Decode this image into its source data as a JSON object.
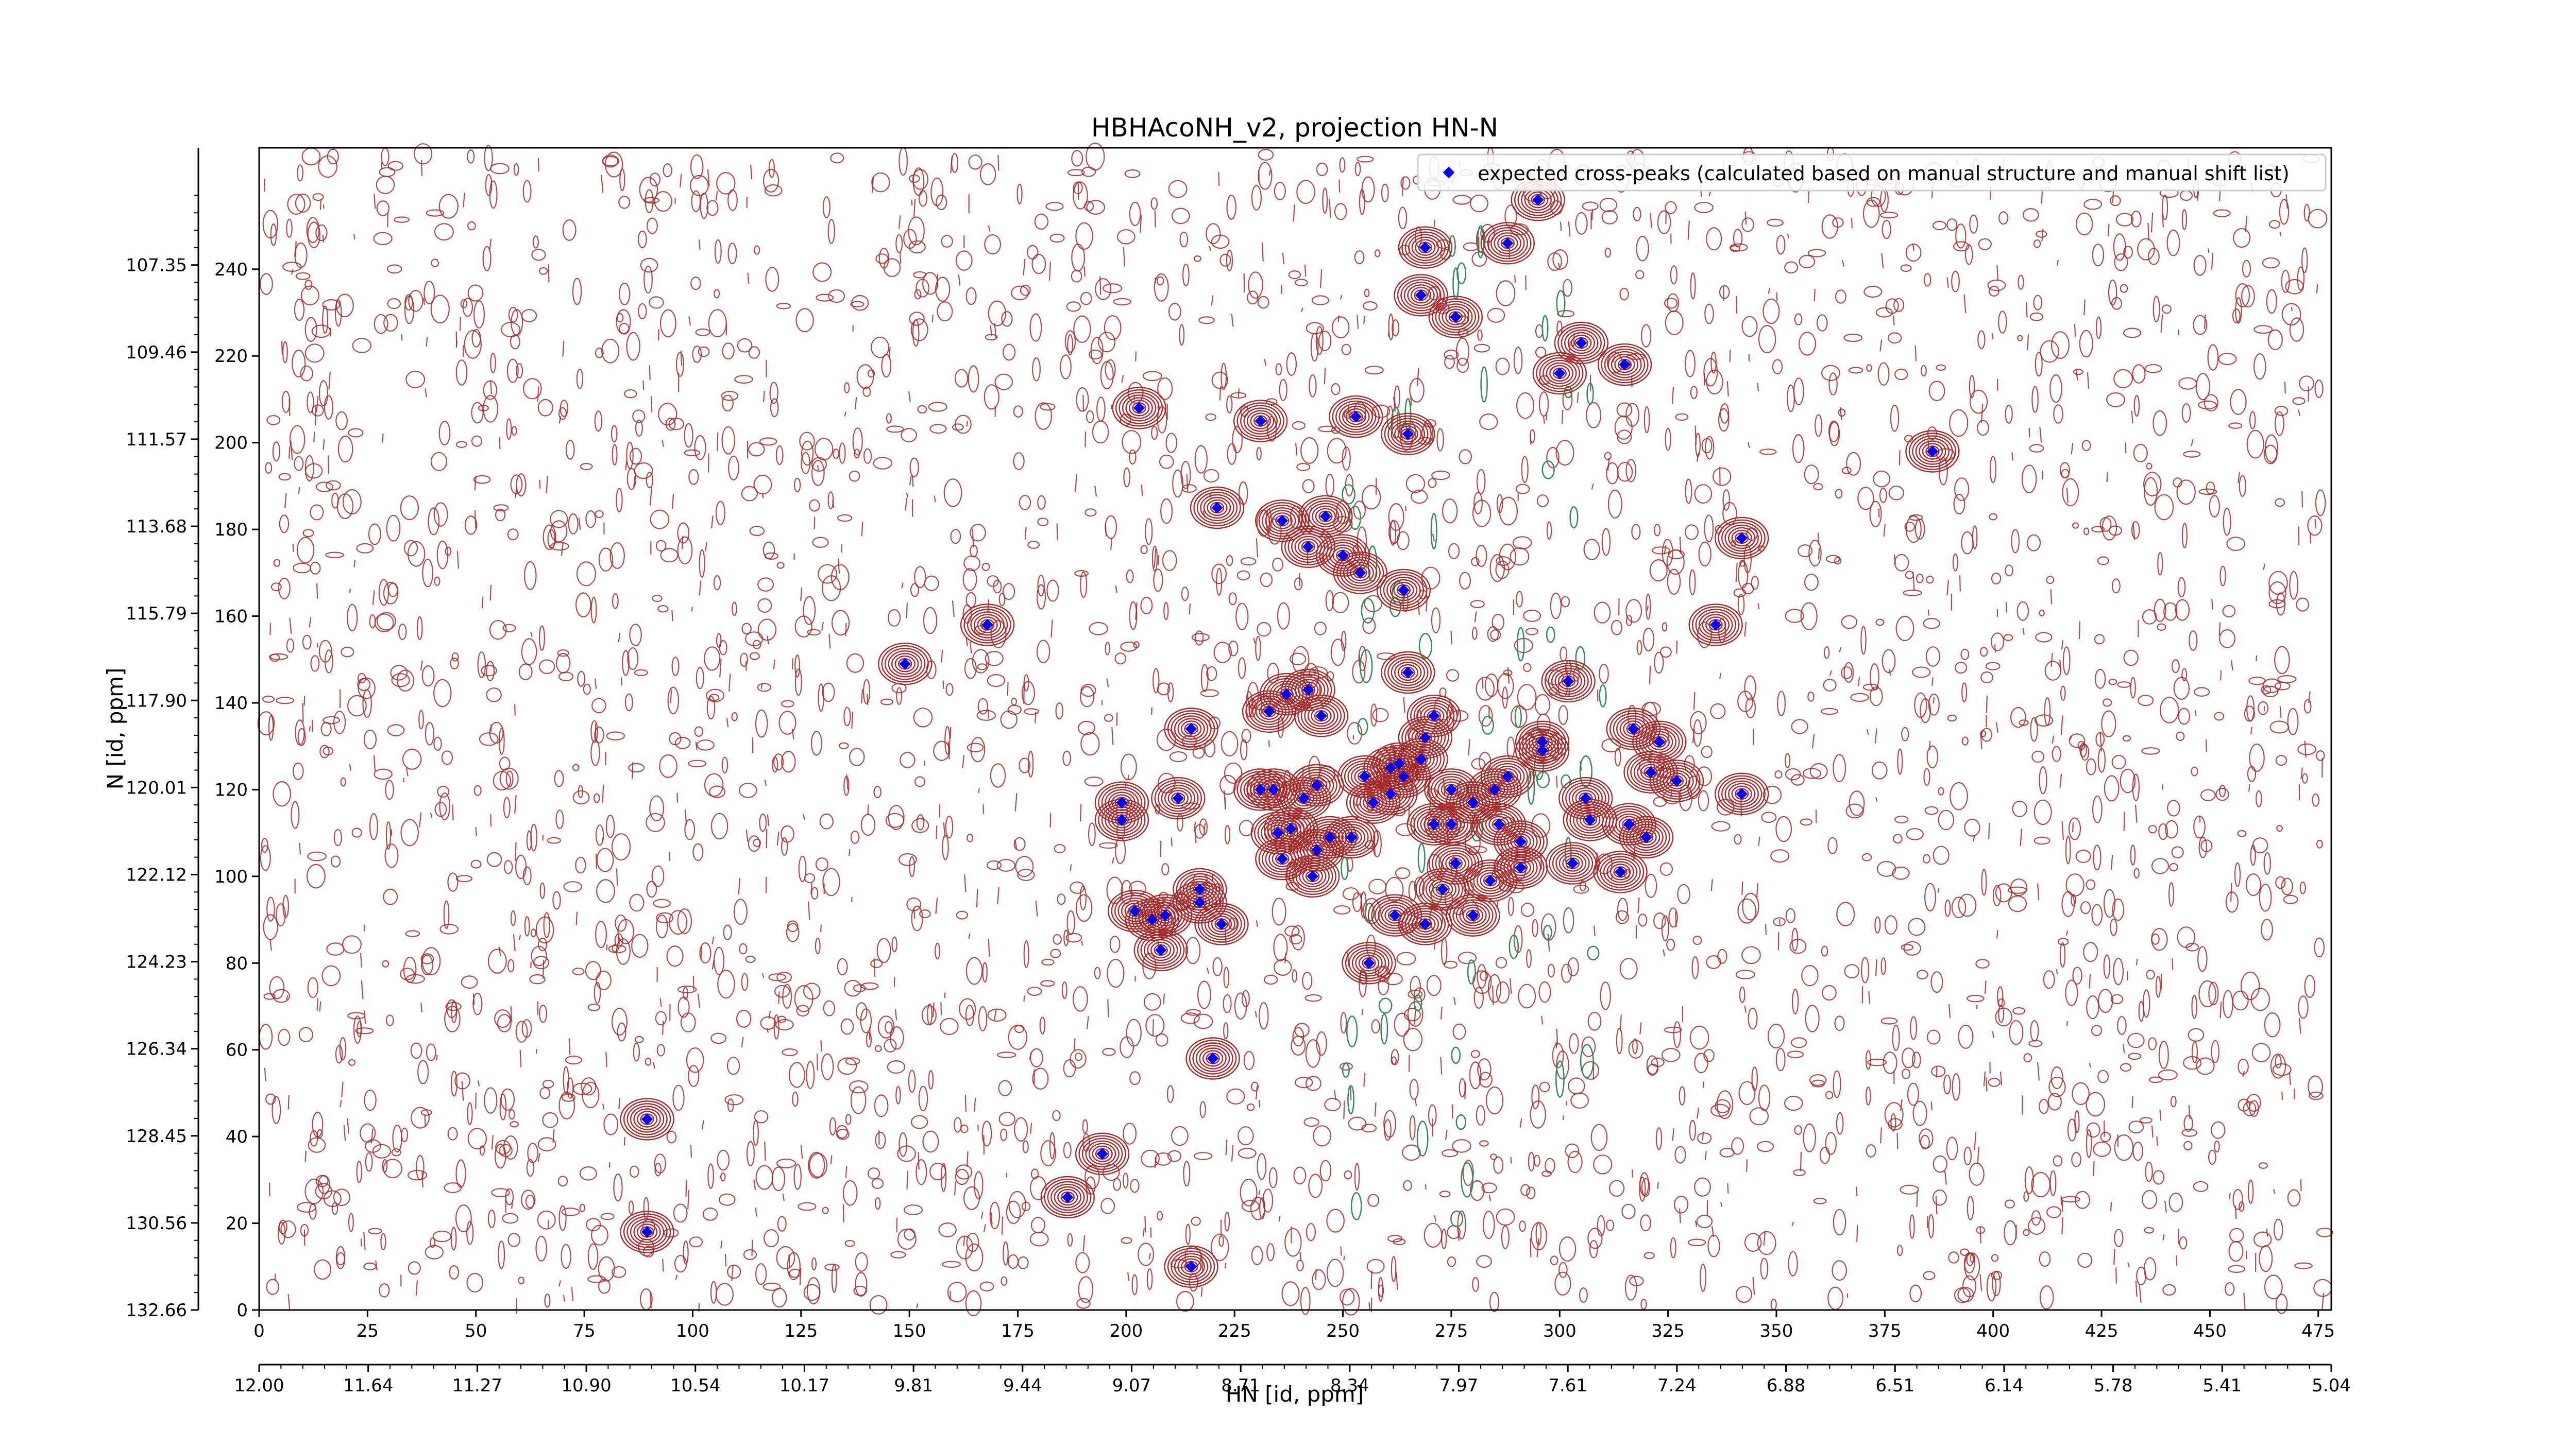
{
  "chart_data": {
    "type": "scatter",
    "title": "HBHAcoNH_v2, projection HN-N",
    "xlabel": "HN [id, ppm]",
    "ylabel": "N [id, ppm]",
    "x_index_range": [
      0,
      478
    ],
    "y_index_range": [
      0,
      268
    ],
    "x_index_ticks": [
      "0",
      "25",
      "50",
      "75",
      "100",
      "125",
      "150",
      "175",
      "200",
      "225",
      "250",
      "275",
      "300",
      "325",
      "350",
      "375",
      "400",
      "425",
      "450",
      "475"
    ],
    "x_ppm_ticks": [
      "12.00",
      "11.64",
      "11.27",
      "10.90",
      "10.54",
      "10.17",
      "9.81",
      "9.44",
      "9.07",
      "8.71",
      "8.34",
      "7.97",
      "7.61",
      "7.24",
      "6.88",
      "6.51",
      "6.14",
      "5.78",
      "5.41",
      "5.04"
    ],
    "y_index_ticks": [
      "0",
      "20",
      "40",
      "60",
      "80",
      "100",
      "120",
      "140",
      "160",
      "180",
      "200",
      "220",
      "240"
    ],
    "y_ppm_ticks": [
      "132.66",
      "130.56",
      "128.45",
      "126.34",
      "124.23",
      "122.12",
      "120.01",
      "117.90",
      "115.79",
      "113.68",
      "111.57",
      "109.46",
      "107.35"
    ],
    "legend": {
      "label": "expected cross-peaks (calculated based on manual structure and manual shift list)",
      "placement": "top-right",
      "marker_color": "#0000ff"
    },
    "colors": {
      "positive_contour": "#a52a2a",
      "negative_contour": "#2e8b57",
      "marker": "#0000ff"
    },
    "series": [
      {
        "name": "expected cross-peaks (calculated based on manual structure and manual shift list)",
        "points": [
          [
            89.5,
            18
          ],
          [
            89.5,
            44
          ],
          [
            186.5,
            26
          ],
          [
            194.5,
            36
          ],
          [
            215,
            10
          ],
          [
            220,
            58
          ],
          [
            208,
            83
          ],
          [
            202,
            92
          ],
          [
            206,
            90
          ],
          [
            209,
            91
          ],
          [
            217,
            94
          ],
          [
            217,
            97
          ],
          [
            222,
            89
          ],
          [
            199,
            113
          ],
          [
            199,
            117
          ],
          [
            212,
            118
          ],
          [
            215,
            134
          ],
          [
            237,
            142
          ],
          [
            233,
            138
          ],
          [
            242,
            143
          ],
          [
            245,
            137
          ],
          [
            231,
            120
          ],
          [
            234,
            120
          ],
          [
            241,
            118
          ],
          [
            244,
            121
          ],
          [
            235,
            110
          ],
          [
            238,
            111
          ],
          [
            236,
            104
          ],
          [
            244,
            106
          ],
          [
            247,
            109
          ],
          [
            252,
            109
          ],
          [
            243,
            100
          ],
          [
            255,
            123
          ],
          [
            257,
            117
          ],
          [
            261,
            125
          ],
          [
            261,
            119
          ],
          [
            263,
            126
          ],
          [
            264,
            123
          ],
          [
            268,
            127
          ],
          [
            269,
            132
          ],
          [
            271,
            137
          ],
          [
            265,
            147
          ],
          [
            275,
            120
          ],
          [
            271,
            112
          ],
          [
            276,
            103
          ],
          [
            280,
            117
          ],
          [
            275,
            112
          ],
          [
            273,
            97
          ],
          [
            269,
            89
          ],
          [
            262,
            91
          ],
          [
            256,
            80
          ],
          [
            280,
            91
          ],
          [
            284,
            99
          ],
          [
            291,
            102
          ],
          [
            291,
            108
          ],
          [
            286,
            112
          ],
          [
            285,
            120
          ],
          [
            288,
            123
          ],
          [
            296,
            129
          ],
          [
            296,
            131
          ],
          [
            302,
            145
          ],
          [
            303,
            103
          ],
          [
            306,
            118
          ],
          [
            307,
            113
          ],
          [
            314,
            101
          ],
          [
            316,
            112
          ],
          [
            317,
            134
          ],
          [
            320,
            109
          ],
          [
            321,
            124
          ],
          [
            327,
            122
          ],
          [
            323,
            131
          ],
          [
            336,
            158
          ],
          [
            342,
            119
          ],
          [
            149,
            149
          ],
          [
            168,
            158
          ],
          [
            203,
            208
          ],
          [
            231,
            205
          ],
          [
            253,
            206
          ],
          [
            221,
            185
          ],
          [
            236,
            182
          ],
          [
            246,
            183
          ],
          [
            242,
            176
          ],
          [
            250,
            174
          ],
          [
            254,
            170
          ],
          [
            264,
            166
          ],
          [
            265,
            202
          ],
          [
            276,
            229
          ],
          [
            269,
            245
          ],
          [
            268,
            234
          ],
          [
            295,
            256
          ],
          [
            288,
            246
          ],
          [
            300,
            216
          ],
          [
            315,
            218
          ],
          [
            305,
            223
          ],
          [
            342,
            178
          ],
          [
            386,
            198
          ]
        ]
      }
    ]
  }
}
